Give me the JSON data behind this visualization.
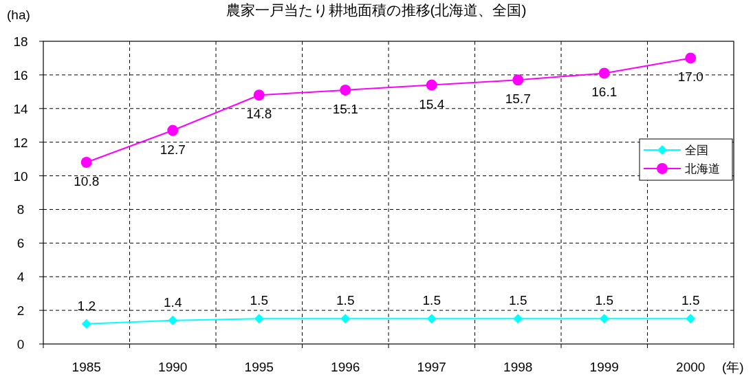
{
  "chart_data": {
    "type": "line",
    "title": "農家一戸当たり耕地面積の推移(北海道、全国)",
    "ylabel": "(ha)",
    "xlabel": "(年)",
    "categories": [
      "1985",
      "1990",
      "1995",
      "1996",
      "1997",
      "1998",
      "1999",
      "2000"
    ],
    "series": [
      {
        "name": "全国",
        "color": "#00ffff",
        "marker": "diamond",
        "values": [
          1.2,
          1.4,
          1.5,
          1.5,
          1.5,
          1.5,
          1.5,
          1.5
        ],
        "value_labels": [
          "1.2",
          "1.4",
          "1.5",
          "1.5",
          "1.5",
          "1.5",
          "1.5",
          "1.5"
        ]
      },
      {
        "name": "北海道",
        "color": "#ff00ff",
        "marker": "circle",
        "values": [
          10.8,
          12.7,
          14.8,
          15.1,
          15.4,
          15.7,
          16.1,
          17.0
        ],
        "value_labels": [
          "10.8",
          "12.7",
          "14.8",
          "15.1",
          "15.4",
          "15.7",
          "16.1",
          "17.0"
        ]
      }
    ],
    "ylim": [
      0,
      18
    ],
    "yticks": [
      0,
      2,
      4,
      6,
      8,
      10,
      12,
      14,
      16,
      18
    ],
    "grid": true,
    "legend": "right",
    "line_style": "solid"
  }
}
